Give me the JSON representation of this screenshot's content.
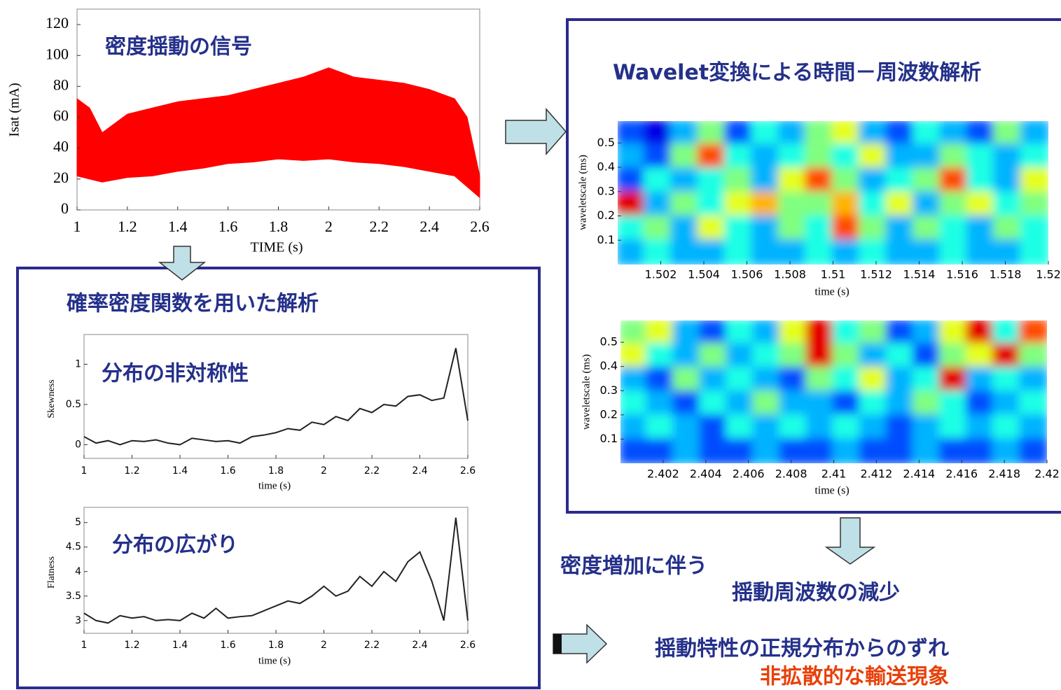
{
  "sections": {
    "pdf_title": "確率密度関数を用いた解析",
    "wavelet_title": "Wavelet変換による時間－周波数解析",
    "note_1": "密度増加に伴う",
    "note_2": "揺動周波数の減少",
    "note_3": "揺動特性の正規分布からのずれ",
    "note_4": "非拡散的な輸送現象"
  },
  "chart_data": [
    {
      "type": "range-area",
      "title": "密度揺動の信号",
      "xlabel": "TIME (s)",
      "ylabel": "Isat (mA)",
      "color": "#ff0000",
      "x": [
        1,
        1.05,
        1.1,
        1.2,
        1.3,
        1.4,
        1.5,
        1.6,
        1.7,
        1.8,
        1.9,
        2,
        2.1,
        2.2,
        2.3,
        2.4,
        2.5,
        2.55,
        2.6
      ],
      "high": [
        72,
        66,
        50,
        62,
        66,
        70,
        72,
        74,
        78,
        82,
        86,
        92,
        86,
        84,
        82,
        78,
        72,
        60,
        22
      ],
      "low": [
        22,
        20,
        18,
        21,
        22,
        25,
        27,
        30,
        31,
        33,
        32,
        33,
        31,
        30,
        28,
        25,
        22,
        15,
        8
      ],
      "xlim": [
        1,
        2.6
      ],
      "xticks": [
        1,
        1.2,
        1.4,
        1.6,
        1.8,
        2,
        2.2,
        2.4,
        2.6
      ],
      "ylim": [
        0,
        130
      ],
      "yticks": [
        0,
        20,
        40,
        60,
        80,
        100,
        120
      ]
    },
    {
      "type": "line",
      "title": "分布の非対称性",
      "xlabel": "time (s)",
      "ylabel": "Skewness",
      "color": "#222222",
      "x": [
        1,
        1.05,
        1.1,
        1.15,
        1.2,
        1.25,
        1.3,
        1.35,
        1.4,
        1.45,
        1.5,
        1.55,
        1.6,
        1.65,
        1.7,
        1.75,
        1.8,
        1.85,
        1.9,
        1.95,
        2,
        2.05,
        2.1,
        2.15,
        2.2,
        2.25,
        2.3,
        2.35,
        2.4,
        2.45,
        2.5,
        2.55,
        2.6
      ],
      "values": [
        0.1,
        0.02,
        0.05,
        0,
        0.05,
        0.04,
        0.06,
        0.02,
        0,
        0.08,
        0.06,
        0.04,
        0.05,
        0.02,
        0.1,
        0.12,
        0.15,
        0.2,
        0.18,
        0.28,
        0.25,
        0.35,
        0.3,
        0.45,
        0.4,
        0.5,
        0.48,
        0.6,
        0.62,
        0.55,
        0.58,
        1.2,
        0.3
      ],
      "xlim": [
        1,
        2.6
      ],
      "xticks": [
        1,
        1.2,
        1.4,
        1.6,
        1.8,
        2,
        2.2,
        2.4,
        2.6
      ],
      "ylim": [
        -0.17,
        1.37
      ],
      "yticks": [
        0,
        0.5,
        1
      ]
    },
    {
      "type": "line",
      "title": "分布の広がり",
      "xlabel": "time (s)",
      "ylabel": "Flatness",
      "color": "#222222",
      "x": [
        1,
        1.05,
        1.1,
        1.15,
        1.2,
        1.25,
        1.3,
        1.35,
        1.4,
        1.45,
        1.5,
        1.55,
        1.6,
        1.65,
        1.7,
        1.75,
        1.8,
        1.85,
        1.9,
        1.95,
        2,
        2.05,
        2.1,
        2.15,
        2.2,
        2.25,
        2.3,
        2.35,
        2.4,
        2.45,
        2.5,
        2.55,
        2.6
      ],
      "values": [
        3.15,
        3,
        2.95,
        3.1,
        3.05,
        3.08,
        3,
        3.02,
        3,
        3.15,
        3.05,
        3.25,
        3.05,
        3.08,
        3.1,
        3.2,
        3.3,
        3.4,
        3.35,
        3.5,
        3.7,
        3.5,
        3.6,
        3.9,
        3.7,
        4,
        3.8,
        4.2,
        4.4,
        3.8,
        3,
        5.1,
        3
      ],
      "xlim": [
        1,
        2.6
      ],
      "xticks": [
        1,
        1.2,
        1.4,
        1.6,
        1.8,
        2,
        2.2,
        2.4,
        2.6
      ],
      "ylim": [
        2.74,
        5.31
      ],
      "yticks": [
        3,
        3.5,
        4,
        4.5,
        5
      ]
    },
    {
      "type": "heatmap",
      "xlabel": "time (s)",
      "ylabel": "waveletscale (ms)",
      "xlim": [
        1.5,
        1.52
      ],
      "xticks": [
        1.502,
        1.504,
        1.506,
        1.508,
        1.51,
        1.512,
        1.514,
        1.516,
        1.518,
        1.52
      ],
      "ylim": [
        0,
        0.59
      ],
      "yticks": [
        0.1,
        0.2,
        0.3,
        0.4,
        0.5
      ],
      "z": [
        [
          0.2,
          0.1,
          0.3,
          0.5,
          0.2,
          0.4,
          0.3,
          0.5,
          0.6,
          0.3,
          0.2,
          0.4,
          0.3,
          0.2,
          0.5,
          0.3
        ],
        [
          0.3,
          0.2,
          0.5,
          0.8,
          0.4,
          0.3,
          0.4,
          0.5,
          0.4,
          0.6,
          0.3,
          0.3,
          0.5,
          0.4,
          0.3,
          0.4
        ],
        [
          0.2,
          0.4,
          0.3,
          0.4,
          0.5,
          0.3,
          0.6,
          0.8,
          0.5,
          0.3,
          0.4,
          0.5,
          0.8,
          0.4,
          0.3,
          0.6
        ],
        [
          0.9,
          0.3,
          0.5,
          0.4,
          0.6,
          0.7,
          0.5,
          0.5,
          0.7,
          0.4,
          0.6,
          0.3,
          0.5,
          0.6,
          0.4,
          0.5
        ],
        [
          0.4,
          0.5,
          0.3,
          0.6,
          0.4,
          0.3,
          0.5,
          0.4,
          0.8,
          0.5,
          0.3,
          0.5,
          0.4,
          0.3,
          0.5,
          0.4
        ],
        [
          0.3,
          0.4,
          0.3,
          0.3,
          0.4,
          0.3,
          0.3,
          0.4,
          0.3,
          0.4,
          0.3,
          0.3,
          0.4,
          0.3,
          0.3,
          0.4
        ]
      ]
    },
    {
      "type": "heatmap",
      "xlabel": "time (s)",
      "ylabel": "waveletscale (ms)",
      "xlim": [
        2.4,
        2.42
      ],
      "xticks": [
        2.402,
        2.404,
        2.406,
        2.408,
        2.41,
        2.412,
        2.414,
        2.416,
        2.418,
        2.42
      ],
      "ylim": [
        0,
        0.59
      ],
      "yticks": [
        0.1,
        0.2,
        0.3,
        0.4,
        0.5
      ],
      "z": [
        [
          0.5,
          0.6,
          0.3,
          0.2,
          0.4,
          0.3,
          0.6,
          0.9,
          0.4,
          0.5,
          0.2,
          0.3,
          0.6,
          0.9,
          0.4,
          0.8
        ],
        [
          0.6,
          0.4,
          0.3,
          0.5,
          0.3,
          0.4,
          0.5,
          0.9,
          0.5,
          0.3,
          0.4,
          0.2,
          0.5,
          0.6,
          0.9,
          0.5
        ],
        [
          0.3,
          0.2,
          0.5,
          0.3,
          0.4,
          0.3,
          0.2,
          0.5,
          0.4,
          0.6,
          0.3,
          0.4,
          0.9,
          0.3,
          0.4,
          0.3
        ],
        [
          0.4,
          0.3,
          0.2,
          0.4,
          0.3,
          0.5,
          0.3,
          0.3,
          0.2,
          0.4,
          0.3,
          0.5,
          0.4,
          0.2,
          0.3,
          0.4
        ],
        [
          0.3,
          0.4,
          0.3,
          0.2,
          0.4,
          0.3,
          0.4,
          0.3,
          0.4,
          0.3,
          0.2,
          0.3,
          0.4,
          0.3,
          0.4,
          0.3
        ],
        [
          0.2,
          0.2,
          0.3,
          0.2,
          0.2,
          0.3,
          0.2,
          0.2,
          0.3,
          0.2,
          0.2,
          0.3,
          0.2,
          0.2,
          0.3,
          0.2
        ]
      ]
    }
  ]
}
